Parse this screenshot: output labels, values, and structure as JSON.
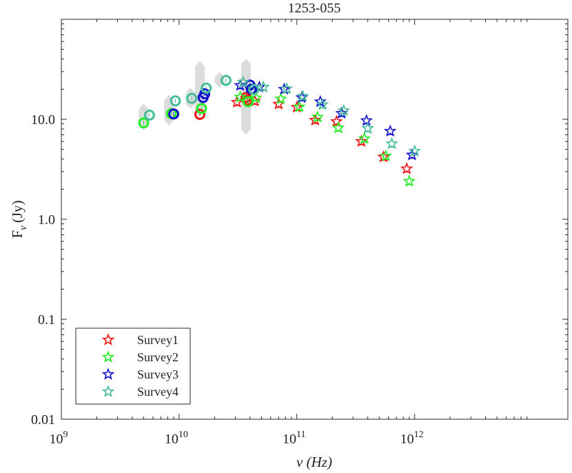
{
  "chart_data": {
    "type": "scatter",
    "title": "1253-055",
    "xlabel": "ν (Hz)",
    "ylabel_main": "F",
    "ylabel_sub": "ν",
    "ylabel_unit": "(Jy)",
    "xscale": "log",
    "yscale": "log",
    "xlim": [
      1000000000,
      20000000000000
    ],
    "ylim": [
      0.01,
      100
    ],
    "x_ticks": [
      {
        "value": 1000000000,
        "base": "10",
        "exp": "9"
      },
      {
        "value": 10000000000,
        "base": "10",
        "exp": "10"
      },
      {
        "value": 100000000000,
        "base": "10",
        "exp": "11"
      },
      {
        "value": 1000000000000,
        "base": "10",
        "exp": "12"
      }
    ],
    "y_ticks": [
      {
        "value": 0.01,
        "label": "0.01"
      },
      {
        "value": 0.1,
        "label": "0.1"
      },
      {
        "value": 1,
        "label": "1.0"
      },
      {
        "value": 10,
        "label": "10.0"
      }
    ],
    "legend_position": "bottom-left",
    "grey_bands": [
      {
        "x": 5000000000,
        "ylow": 8.3,
        "yhigh": 13.5
      },
      {
        "x": 8200000000,
        "ylow": 9.2,
        "yhigh": 16.5
      },
      {
        "x": 12500000000,
        "ylow": 13.5,
        "yhigh": 19.5
      },
      {
        "x": 15000000000,
        "ylow": 11.5,
        "yhigh": 36
      },
      {
        "x": 22000000000,
        "ylow": 22,
        "yhigh": 28
      },
      {
        "x": 37000000000,
        "ylow": 7.5,
        "yhigh": 38
      }
    ],
    "series": [
      {
        "name": "Survey1",
        "color": "#ee1111",
        "circles": [
          {
            "x": 15000000000,
            "y": 11.2
          },
          {
            "x": 37000000000,
            "y": 16.5
          },
          {
            "x": 38000000000,
            "y": 15.5
          }
        ],
        "stars": [
          {
            "x": 31000000000,
            "y": 14.8
          },
          {
            "x": 44000000000,
            "y": 15.2
          },
          {
            "x": 70000000000,
            "y": 14.2
          },
          {
            "x": 100000000000,
            "y": 13.2
          },
          {
            "x": 143000000000,
            "y": 9.8
          },
          {
            "x": 217000000000,
            "y": 9.5
          },
          {
            "x": 353000000000,
            "y": 6
          },
          {
            "x": 545000000000,
            "y": 4.2
          },
          {
            "x": 857000000000,
            "y": 3.2
          }
        ]
      },
      {
        "name": "Survey2",
        "color": "#22ee22",
        "circles": [
          {
            "x": 5000000000,
            "y": 9.2
          },
          {
            "x": 8600000000,
            "y": 11.4
          },
          {
            "x": 15500000000,
            "y": 12.8
          },
          {
            "x": 38500000000,
            "y": 15
          }
        ],
        "stars": [
          {
            "x": 33000000000,
            "y": 16.7
          },
          {
            "x": 45000000000,
            "y": 16.4
          },
          {
            "x": 73000000000,
            "y": 16
          },
          {
            "x": 105000000000,
            "y": 13.3
          },
          {
            "x": 150000000000,
            "y": 10.5
          },
          {
            "x": 225000000000,
            "y": 8.2
          },
          {
            "x": 375000000000,
            "y": 6.4
          },
          {
            "x": 570000000000,
            "y": 4.3
          },
          {
            "x": 900000000000,
            "y": 2.4
          }
        ]
      },
      {
        "name": "Survey3",
        "color": "#1111cc",
        "circles": [
          {
            "x": 9000000000,
            "y": 11.3
          },
          {
            "x": 16000000000,
            "y": 16.5
          },
          {
            "x": 16500000000,
            "y": 18
          },
          {
            "x": 40000000000,
            "y": 22
          },
          {
            "x": 41000000000,
            "y": 20
          }
        ],
        "stars": [
          {
            "x": 33000000000,
            "y": 21.8
          },
          {
            "x": 48000000000,
            "y": 21
          },
          {
            "x": 78000000000,
            "y": 20
          },
          {
            "x": 110000000000,
            "y": 16.5
          },
          {
            "x": 158000000000,
            "y": 15
          },
          {
            "x": 240000000000,
            "y": 11.5
          },
          {
            "x": 390000000000,
            "y": 9.7
          },
          {
            "x": 620000000000,
            "y": 7.6
          },
          {
            "x": 950000000000,
            "y": 4.4
          }
        ]
      },
      {
        "name": "Survey4",
        "color": "#44bb99",
        "circles": [
          {
            "x": 5600000000,
            "y": 11
          },
          {
            "x": 9300000000,
            "y": 15.3
          },
          {
            "x": 12800000000,
            "y": 16.2
          },
          {
            "x": 17000000000,
            "y": 20.5
          },
          {
            "x": 25000000000,
            "y": 24.5
          },
          {
            "x": 43000000000,
            "y": 19.8
          }
        ],
        "stars": [
          {
            "x": 35000000000,
            "y": 23.5
          },
          {
            "x": 52000000000,
            "y": 21
          },
          {
            "x": 82000000000,
            "y": 20.2
          },
          {
            "x": 112000000000,
            "y": 17
          },
          {
            "x": 165000000000,
            "y": 14
          },
          {
            "x": 250000000000,
            "y": 12.2
          },
          {
            "x": 400000000000,
            "y": 8.1
          },
          {
            "x": 640000000000,
            "y": 5.7
          },
          {
            "x": 1000000000000,
            "y": 4.8
          }
        ]
      }
    ]
  }
}
